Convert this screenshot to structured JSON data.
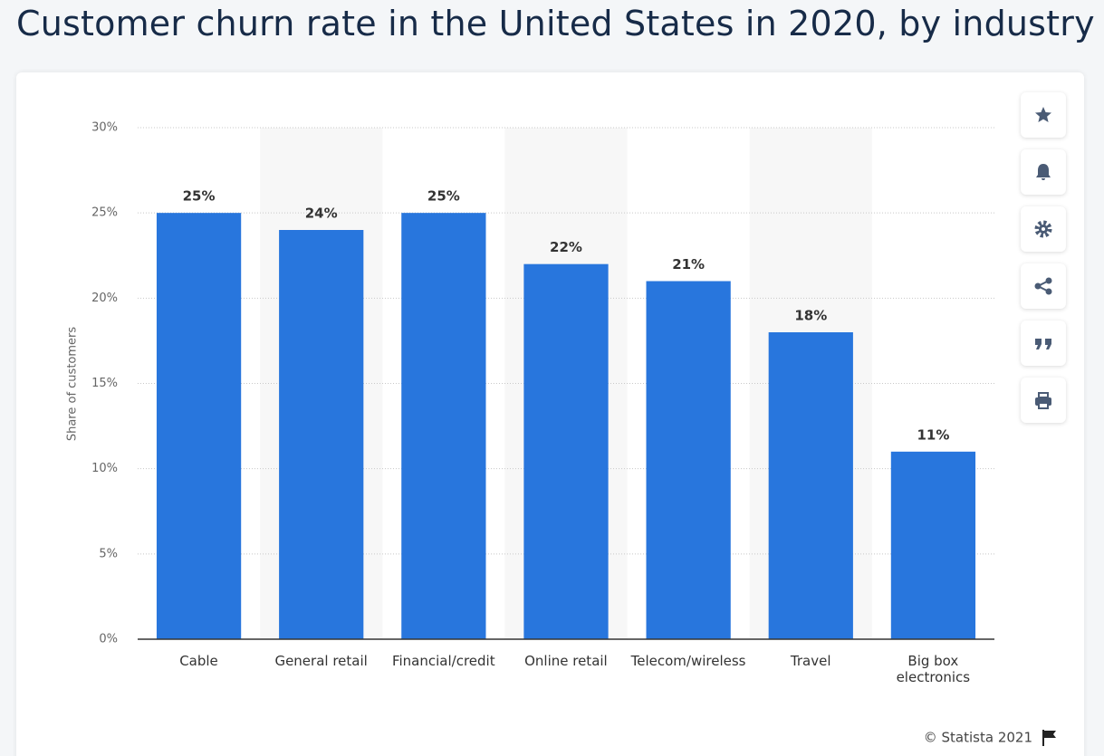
{
  "chart_data": {
    "type": "bar",
    "title": "Customer churn rate in the United States in 2020, by industry",
    "y_label": "Share of customers",
    "credit": "© Statista 2021",
    "categories": [
      "Cable",
      "General retail",
      "Financial/credit",
      "Online retail",
      "Telecom/wireless",
      "Travel",
      "Big box electronics"
    ],
    "values": [
      25,
      24,
      25,
      22,
      21,
      18,
      11
    ],
    "value_labels": [
      "25%",
      "24%",
      "25%",
      "22%",
      "21%",
      "18%",
      "11%"
    ],
    "color": "#2876dd",
    "ylim": [
      0,
      30
    ],
    "yticks": [
      {
        "value": 0,
        "label": "0%"
      },
      {
        "value": 5,
        "label": "5%"
      },
      {
        "value": 10,
        "label": "10%"
      },
      {
        "value": 15,
        "label": "15%"
      },
      {
        "value": 20,
        "label": "20%"
      },
      {
        "value": 25,
        "label": "25%"
      },
      {
        "value": 30,
        "label": "30%"
      }
    ],
    "grid": true
  }
}
